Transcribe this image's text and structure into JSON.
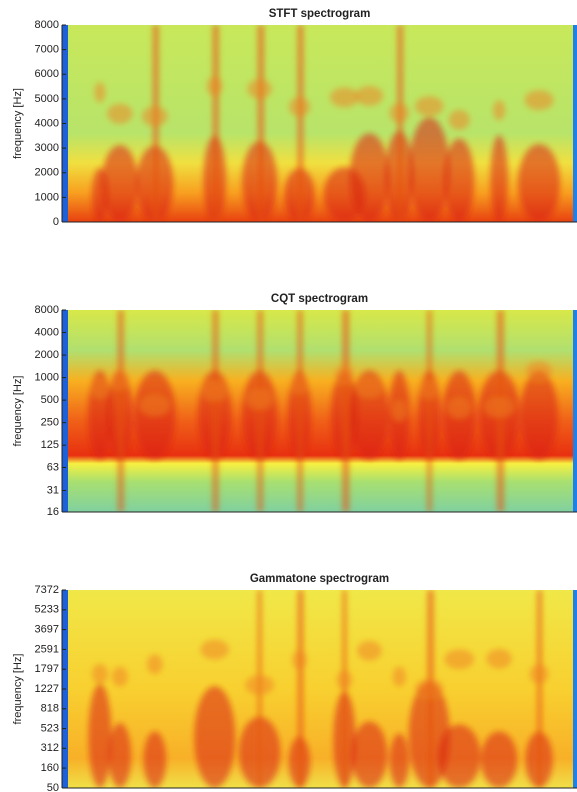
{
  "chart_data": [
    {
      "type": "spectrogram",
      "title": "STFT spectrogram",
      "y_label": "frequency [Hz]",
      "y_scale": "linear",
      "ylim": [
        0,
        8000
      ],
      "yticks": [
        0,
        1000,
        2000,
        3000,
        4000,
        5000,
        6000,
        7000,
        8000
      ]
    },
    {
      "type": "spectrogram",
      "title": "CQT spectrogram",
      "y_label": "frequency [Hz]",
      "y_scale": "log2",
      "ylim": [
        16,
        8000
      ],
      "yticks": [
        16,
        31,
        63,
        125,
        250,
        500,
        1000,
        2000,
        4000,
        8000
      ]
    },
    {
      "type": "spectrogram",
      "title": "Gammatone spectrogram",
      "y_label": "frequency [Hz]",
      "y_scale": "erb",
      "ylim": [
        50,
        7372
      ],
      "yticks": [
        50,
        160,
        312,
        523,
        818,
        1227,
        1797,
        2591,
        3697,
        5233,
        7372
      ]
    }
  ]
}
